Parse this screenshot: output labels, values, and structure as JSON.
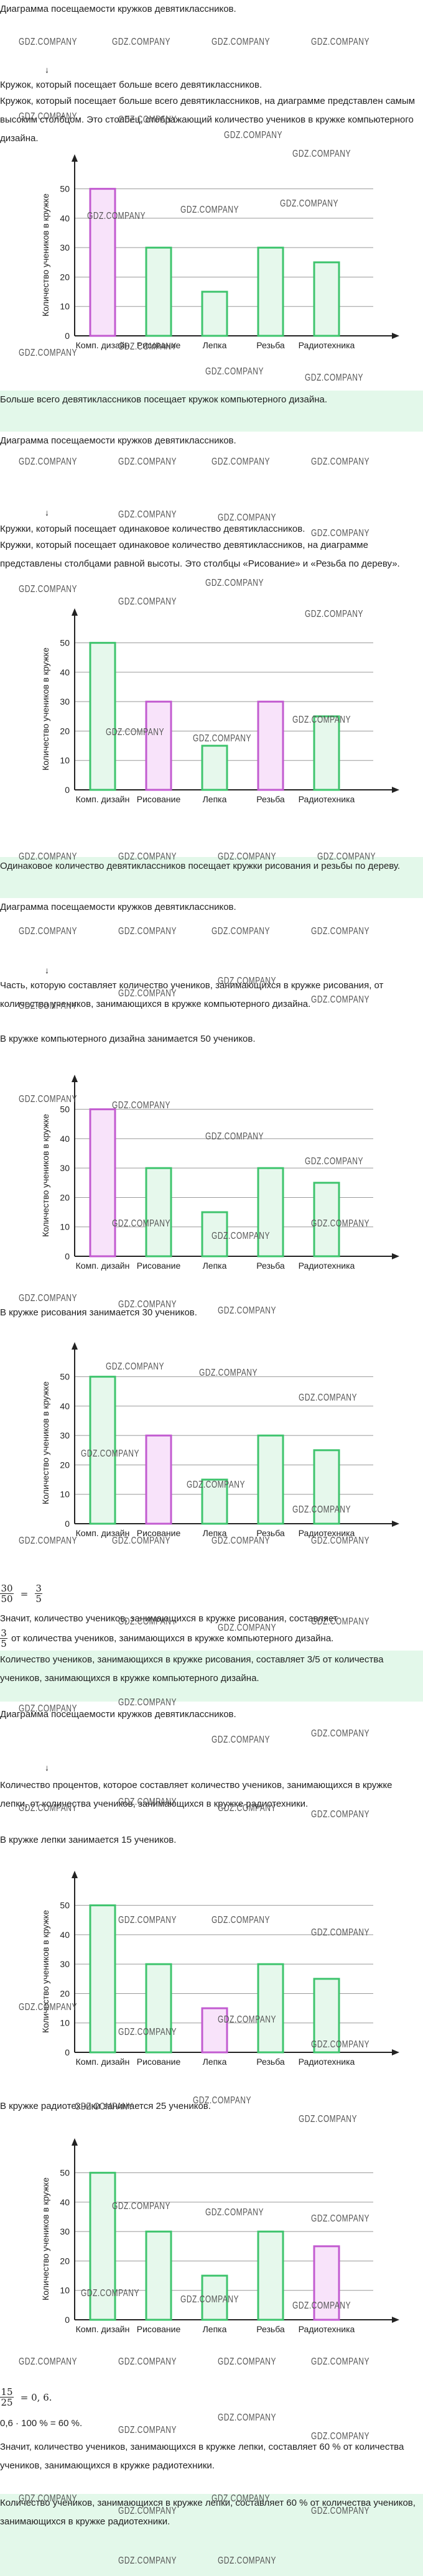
{
  "blocks": {
    "b01": "Диаграмма посещаемости кружков девятиклассников.",
    "b02": "Кружок, который посещает больше всего девятиклассников.",
    "b03": "Кружок, который посещает больше всего девятиклассников, на диаграмме представлен самым высоким столбцом. Это столбец, отображающий количество учеников в кружке компьютерного дизайна.",
    "b04": "Больше всего девятиклассников посещает кружок компьютерного дизайна.",
    "b05": "Диаграмма посещаемости кружков девятиклассников.",
    "b06": "Кружки, который посещает одинаковое количество девятиклассников.",
    "b07": "Кружки, который посещает одинаковое количество девятиклассников, на диаграмме представлены столбцами равной высоты. Это столбцы «Рисование» и «Резьба по дереву».",
    "b08": "Одинаковое количество девятиклассников посещает кружки рисования и резьбы по дереву.",
    "b09": "Диаграмма посещаемости кружков девятиклассников.",
    "b10": "Часть, которую составляет количество учеников, занимающихся в кружке рисования, от количества учеников, занимающихся в кружке компьютерного дизайна.",
    "b11": "В кружке компьютерного дизайна занимается 50 учеников.",
    "b12": "В кружке рисования занимается 30 учеников.",
    "b13": "Значит, количество учеников, занимающихся в кружке рисования, составляет",
    "b14": "от количества учеников, занимающихся в кружке компьютерного дизайна.",
    "b15": "Количество учеников, занимающихся в кружке рисования, составляет 3/5 от количества учеников, занимающихся в кружке компьютерного дизайна.",
    "b16": "Диаграмма посещаемости кружков девятиклассников.",
    "b17": "Количество процентов, которое составляет количество учеников, занимающихся в кружке лепки, от количества учеников, занимающихся в кружке радиотехники.",
    "b18": "В кружке лепки занимается 15 учеников.",
    "b19": "В кружке радиотехники занимается 25 учеников.",
    "b20": "0,6 · 100 % = 60 %.",
    "b21": "Значит, количество учеников, занимающихся в кружке лепки, составляет 60 % от количества учеников, занимающихся в кружке радиотехники.",
    "b22": "Количество учеников, занимающихся в кружке лепки, составляет 60 % от количества учеников, занимающихся в кружке радиотехники."
  },
  "fractions": {
    "f1_num": "30",
    "f1_den": "50",
    "f1_eq": "=",
    "f1_rnum": "3",
    "f1_rden": "5",
    "f2_num": "3",
    "f2_den": "5",
    "f3_num": "15",
    "f3_den": "25",
    "f3_tail": "= 0, 6."
  },
  "watermark": "GDZ.COMPANY",
  "colors": {
    "bar_green": "#3ec46d",
    "bar_green_fill": "#e6f8ec",
    "bar_pink": "#c25bd0",
    "bar_pink_fill": "#f8e3fa",
    "highlight": "#e3f8ea"
  },
  "chart_data": [
    {
      "type": "bar",
      "ylabel": "Количество учеников в кружке",
      "categories": [
        "Комп. дизайн",
        "Рисование",
        "Лепка",
        "Резьба",
        "Радиотехника"
      ],
      "values": [
        50,
        30,
        15,
        30,
        25
      ],
      "highlight": [
        0
      ],
      "yticks": [
        0,
        10,
        20,
        30,
        40,
        50
      ],
      "ylim": [
        0,
        55
      ]
    },
    {
      "type": "bar",
      "ylabel": "Количество учеников в кружке",
      "categories": [
        "Комп. дизайн",
        "Рисование",
        "Лепка",
        "Резьба",
        "Радиотехника"
      ],
      "values": [
        50,
        30,
        15,
        30,
        25
      ],
      "highlight": [
        1,
        3
      ],
      "yticks": [
        0,
        10,
        20,
        30,
        40,
        50
      ],
      "ylim": [
        0,
        55
      ]
    },
    {
      "type": "bar",
      "ylabel": "Количество учеников в кружке",
      "categories": [
        "Комп. дизайн",
        "Рисование",
        "Лепка",
        "Резьба",
        "Радиотехника"
      ],
      "values": [
        50,
        30,
        15,
        30,
        25
      ],
      "highlight": [
        0
      ],
      "yticks": [
        0,
        10,
        20,
        30,
        40,
        50
      ],
      "ylim": [
        0,
        55
      ]
    },
    {
      "type": "bar",
      "ylabel": "Количество учеников в кружке",
      "categories": [
        "Комп. дизайн",
        "Рисование",
        "Лепка",
        "Резьба",
        "Радиотехника"
      ],
      "values": [
        50,
        30,
        15,
        30,
        25
      ],
      "highlight": [
        1
      ],
      "yticks": [
        0,
        10,
        20,
        30,
        40,
        50
      ],
      "ylim": [
        0,
        55
      ]
    },
    {
      "type": "bar",
      "ylabel": "Количество учеников в кружке",
      "categories": [
        "Комп. дизайн",
        "Рисование",
        "Лепка",
        "Резьба",
        "Радиотехника"
      ],
      "values": [
        50,
        30,
        15,
        30,
        25
      ],
      "highlight": [
        2
      ],
      "yticks": [
        0,
        10,
        20,
        30,
        40,
        50
      ],
      "ylim": [
        0,
        55
      ]
    },
    {
      "type": "bar",
      "ylabel": "Количество учеников в кружке",
      "categories": [
        "Комп. дизайн",
        "Рисование",
        "Лепка",
        "Резьба",
        "Радиотехника"
      ],
      "values": [
        50,
        30,
        15,
        30,
        25
      ],
      "highlight": [
        4
      ],
      "yticks": [
        0,
        10,
        20,
        30,
        40,
        50
      ],
      "ylim": [
        0,
        55
      ]
    }
  ]
}
